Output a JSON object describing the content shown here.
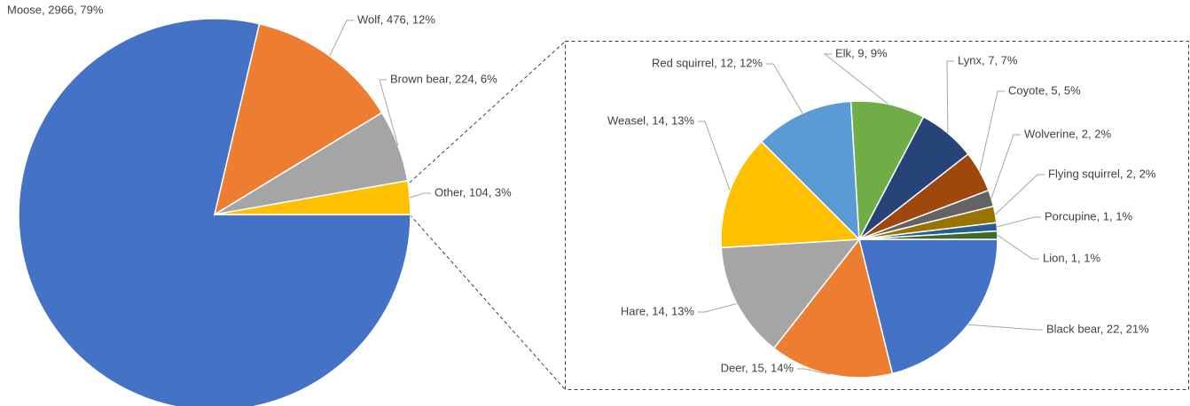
{
  "chart_data": [
    {
      "type": "pie",
      "values": [
        2966,
        476,
        224,
        104
      ],
      "value_labels": [
        "Moose, 2966, 79%",
        "Wolf, 476, 12%",
        "Brown bear, 224, 6%",
        "Other, 104, 3%"
      ],
      "colors": [
        "#4472c4",
        "#ed7d31",
        "#a5a5a5",
        "#ffc000"
      ]
    },
    {
      "type": "pie",
      "values": [
        22,
        15,
        14,
        14,
        12,
        9,
        7,
        5,
        2,
        2,
        1,
        1
      ],
      "value_labels": [
        "Black bear, 22, 21%",
        "Deer, 15, 14%",
        "Hare, 14, 13%",
        "Weasel, 14, 13%",
        "Red squirrel, 12, 12%",
        "Elk, 9, 9%",
        "Lynx, 7, 7%",
        "Coyote, 5, 5%",
        "Wolverine, 2, 2%",
        "Flying squirrel, 2, 2%",
        "Porcupine, 1, 1%",
        "Lion, 1, 1%"
      ],
      "colors": [
        "#4472c4",
        "#ed7d31",
        "#a5a5a5",
        "#ffc000",
        "#5b9bd5",
        "#70ad47",
        "#264478",
        "#9e480e",
        "#636363",
        "#997300",
        "#255e91",
        "#43682b"
      ]
    }
  ]
}
